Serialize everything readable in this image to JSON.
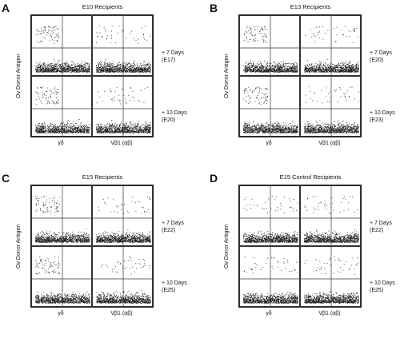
{
  "panels": [
    {
      "letter": "A",
      "title": "E10 Recipients",
      "ylabel": "Ov Donor Antigen",
      "row1_a": "+ 7 Days",
      "row1_b": "(E17)",
      "row2_a": "+ 10 Days",
      "row2_b": "(E20)",
      "xlab1": "γδ",
      "xlab2": "Vβ1 (αβ)"
    },
    {
      "letter": "B",
      "title": "E13 Recipients",
      "ylabel": "Ov Donor Antigen",
      "row1_a": "+ 7 Days",
      "row1_b": "(E20)",
      "row2_a": "+ 10 Days",
      "row2_b": "(E23)",
      "xlab1": "γδ",
      "xlab2": "Vβ1 (αβ)"
    },
    {
      "letter": "C",
      "title": "E15 Recipients",
      "ylabel": "Ov Donor Antigen",
      "row1_a": "+ 7 Days",
      "row1_b": "(E22)",
      "row2_a": "+ 10 Days",
      "row2_b": "(E25)",
      "xlab1": "γδ",
      "xlab2": "Vβ1 (αβ)"
    },
    {
      "letter": "D",
      "title": "E15 Control Recipients",
      "ylabel": "Ov Donor Antigen",
      "row1_a": "+ 7 Days",
      "row1_b": "(E22)",
      "row2_a": "+ 10 Days",
      "row2_b": "(E25)",
      "xlab1": "γδ",
      "xlab2": "Vβ1 (αβ)"
    }
  ]
}
